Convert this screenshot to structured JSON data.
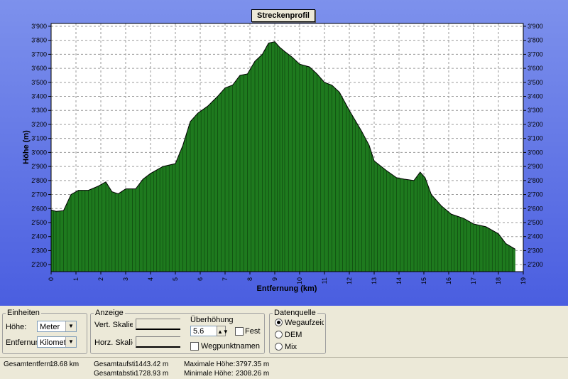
{
  "title": "Streckenprofil",
  "chart_data": {
    "type": "area",
    "xlabel": "Entfernung (km)",
    "ylabel": "Höhe (m)",
    "xlim": [
      0,
      19
    ],
    "ylim": [
      2150,
      3920
    ],
    "x_ticks": [
      0,
      1,
      2,
      3,
      4,
      5,
      6,
      7,
      8,
      9,
      10,
      11,
      12,
      13,
      14,
      15,
      16,
      17,
      18,
      19
    ],
    "y_ticks": [
      2200,
      2300,
      2400,
      2500,
      2600,
      2700,
      2800,
      2900,
      3000,
      3100,
      3200,
      3300,
      3400,
      3500,
      3600,
      3700,
      3800,
      3900
    ],
    "y_tick_labels": [
      "2'200",
      "2'300",
      "2'400",
      "2'500",
      "2'600",
      "2'700",
      "2'800",
      "2'900",
      "3'000",
      "3'100",
      "3'200",
      "3'300",
      "3'400",
      "3'500",
      "3'600",
      "3'700",
      "3'800",
      "3'900"
    ],
    "grid": true,
    "fill_color": "#1e7a1e",
    "series": [
      {
        "x": [
          0,
          0.2,
          0.5,
          0.8,
          1.1,
          1.5,
          1.9,
          2.2,
          2.45,
          2.7,
          3.0,
          3.4,
          3.7,
          4.0,
          4.5,
          5.0,
          5.3,
          5.6,
          5.9,
          6.3,
          6.7,
          7.0,
          7.3,
          7.6,
          7.9,
          8.2,
          8.5,
          8.75,
          9.0,
          9.2,
          9.4,
          9.7,
          10.0,
          10.4,
          10.7,
          11.0,
          11.3,
          11.6,
          12.0,
          12.5,
          12.8,
          13.0,
          13.5,
          13.9,
          14.2,
          14.6,
          14.85,
          15.05,
          15.3,
          15.7,
          16.1,
          16.6,
          17.0,
          17.5,
          18.0,
          18.3,
          18.68
        ],
        "y": [
          2590,
          2580,
          2585,
          2700,
          2730,
          2730,
          2760,
          2790,
          2720,
          2705,
          2740,
          2740,
          2810,
          2850,
          2900,
          2920,
          3050,
          3220,
          3280,
          3330,
          3400,
          3460,
          3480,
          3550,
          3560,
          3650,
          3700,
          3780,
          3790,
          3750,
          3720,
          3680,
          3630,
          3610,
          3560,
          3500,
          3480,
          3430,
          3300,
          3150,
          3050,
          2940,
          2870,
          2820,
          2810,
          2800,
          2860,
          2820,
          2700,
          2620,
          2560,
          2530,
          2490,
          2470,
          2420,
          2350,
          2310
        ]
      }
    ]
  },
  "panel": {
    "einheiten": {
      "legend": "Einheiten",
      "hoehe_label": "Höhe:",
      "hoehe_value": "Meter",
      "entfernung_label": "Entfernung:",
      "entfernung_value": "Kilometer"
    },
    "anzeige": {
      "legend": "Anzeige",
      "vert_label": "Vert. Skalierung",
      "horz_label": "Horz. Skalierung",
      "ueberhoehung_label": "Überhöhung",
      "ueberhoehung_value": "5.6",
      "fest_label": "Festst",
      "wegpunkt_label": "Wegpunktnamen"
    },
    "datenquelle": {
      "legend": "Datenquelle",
      "options": [
        "Wegaufzeichnung",
        "DEM",
        "Mix"
      ],
      "selected": 0
    }
  },
  "stats": {
    "gesamtentfernung_label": "Gesamtentfern.:",
    "gesamtentfernung_value": "18.68 km",
    "aufstieg_label": "Gesamtaufstieg:",
    "aufstieg_value": "1443.42 m",
    "abstieg_label": "Gesamtabstieg:",
    "abstieg_value": "1728.93 m",
    "max_label": "Maximale Höhe:",
    "max_value": "3797.35 m",
    "min_label": "Minimale Höhe:",
    "min_value": "2308.26 m"
  }
}
